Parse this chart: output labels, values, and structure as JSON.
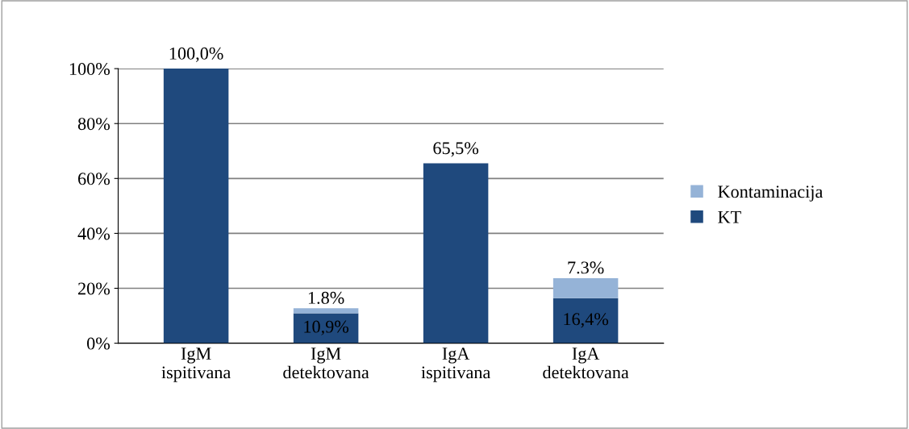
{
  "chart_data": {
    "type": "bar",
    "stacked": true,
    "categories": [
      "IgM\nispitivana",
      "IgM\ndetektovana",
      "IgA\nispitivana",
      "IgA\ndetektovana"
    ],
    "series": [
      {
        "name": "KT",
        "color": "#1f497d",
        "values": [
          100.0,
          10.9,
          65.5,
          16.4
        ],
        "value_labels": [
          "100,0%",
          "10,9%",
          "65,5%",
          "16,4%"
        ]
      },
      {
        "name": "Kontaminacija",
        "color": "#95b3d7",
        "values": [
          null,
          1.8,
          null,
          7.3
        ],
        "value_labels": [
          null,
          "1.8%",
          null,
          "7.3%"
        ]
      }
    ],
    "ylim": [
      0,
      100
    ],
    "yticks": [
      {
        "value": 0,
        "label": "0%"
      },
      {
        "value": 20,
        "label": "20%"
      },
      {
        "value": 40,
        "label": "40%"
      },
      {
        "value": 60,
        "label": "60%"
      },
      {
        "value": 80,
        "label": "80%"
      },
      {
        "value": 100,
        "label": "100%"
      }
    ],
    "grid": "y",
    "legend": "right"
  }
}
